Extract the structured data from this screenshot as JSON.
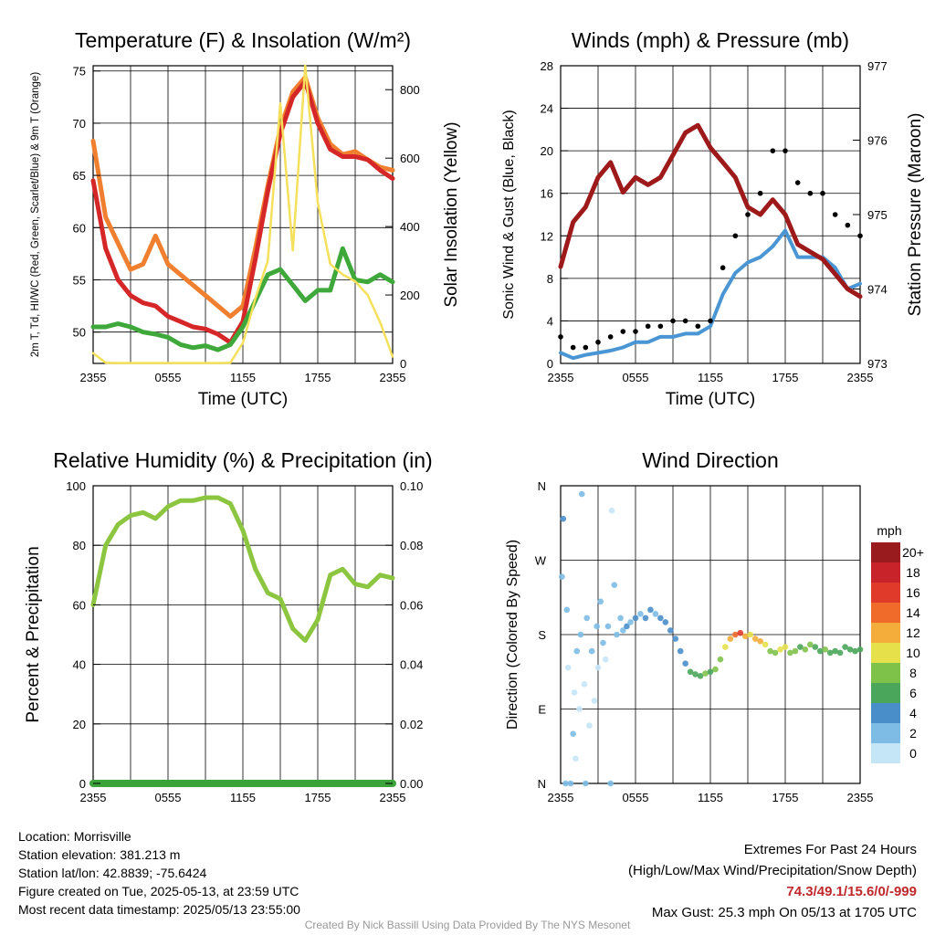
{
  "colors": {
    "red": "#d62728",
    "orange": "#f08030",
    "green": "#3ea83a",
    "yellow": "#f4e05a",
    "blue": "#4a96d4",
    "black": "#000000",
    "maroon": "#9e1a1a",
    "rh": "#8cc641",
    "precip": "#3aa33a"
  },
  "chart_data": [
    {
      "type": "line",
      "title": "Temperature (F) & Insolation (W/m²)",
      "xlabel": "Time (UTC)",
      "ylabel": "2m T, Td, HI/WC (Red, Green, Scarlet/Blue) & 9m T (Orange)",
      "y2label": "Solar Insolation (Yellow)",
      "xticks": [
        "2355",
        "0555",
        "1155",
        "1755",
        "2355"
      ],
      "ylim": [
        47,
        75.5
      ],
      "yticks": [
        "50",
        "55",
        "60",
        "65",
        "70",
        "75"
      ],
      "y2lim": [
        0,
        870
      ],
      "y2ticks": [
        "0",
        "200",
        "400",
        "600",
        "800"
      ],
      "x_hours": [
        0,
        1,
        2,
        3,
        4,
        5,
        6,
        7,
        8,
        9,
        10,
        11,
        12,
        13,
        14,
        15,
        16,
        17,
        18,
        19,
        20,
        21,
        22,
        23,
        24
      ],
      "series": [
        {
          "key": "t9m",
          "color": "orange",
          "axis": "left",
          "values": [
            68.3,
            61,
            58.5,
            56,
            56.5,
            59.2,
            56.5,
            55.5,
            54.5,
            53.5,
            52.5,
            51.5,
            52.5,
            58,
            64,
            69.5,
            73,
            74.4,
            70.5,
            68,
            67,
            67.3,
            66.5,
            65.8,
            65.5
          ]
        },
        {
          "key": "t2m",
          "color": "red",
          "axis": "left",
          "values": [
            64.5,
            58,
            55,
            53.5,
            52.8,
            52.5,
            51.5,
            51,
            50.5,
            50.3,
            49.8,
            49,
            51,
            57,
            63.5,
            69,
            72.5,
            74,
            70,
            67.5,
            66.8,
            66.8,
            66.5,
            65.5,
            64.7
          ]
        },
        {
          "key": "td",
          "color": "green",
          "axis": "left",
          "values": [
            50.5,
            50.5,
            50.8,
            50.5,
            50,
            49.8,
            49.5,
            48.8,
            48.5,
            48.7,
            48.3,
            48.8,
            50.5,
            53,
            55.5,
            56,
            54.5,
            53,
            54,
            54,
            58,
            55,
            54.8,
            55.5,
            54.8
          ]
        },
        {
          "key": "solar",
          "color": "yellow",
          "axis": "right",
          "values": [
            30,
            2,
            1,
            1,
            1,
            1,
            1,
            1,
            1,
            1,
            1,
            2,
            60,
            190,
            300,
            760,
            330,
            870,
            470,
            290,
            260,
            240,
            200,
            120,
            20
          ]
        }
      ]
    },
    {
      "type": "line",
      "title": "Winds (mph) & Pressure (mb)",
      "xlabel": "Time (UTC)",
      "ylabel": "Sonic Wind & Gust (Blue, Black)",
      "y2label": "Station Pressure (Maroon)",
      "xticks": [
        "2355",
        "0555",
        "1155",
        "1755",
        "2355"
      ],
      "ylim": [
        0,
        28
      ],
      "yticks": [
        "0",
        "4",
        "8",
        "12",
        "16",
        "20",
        "24",
        "28"
      ],
      "y2lim": [
        973,
        977
      ],
      "y2ticks": [
        "973",
        "974",
        "975",
        "976",
        "977"
      ],
      "x_hours": [
        0,
        1,
        2,
        3,
        4,
        5,
        6,
        7,
        8,
        9,
        10,
        11,
        12,
        13,
        14,
        15,
        16,
        17,
        18,
        19,
        20,
        21,
        22,
        23,
        24
      ],
      "series": [
        {
          "key": "wind",
          "color": "blue",
          "axis": "left",
          "values": [
            1,
            0.5,
            0.8,
            1,
            1.2,
            1.5,
            2,
            2,
            2.5,
            2.5,
            2.8,
            2.8,
            3.5,
            6.5,
            8.5,
            9.5,
            10,
            11,
            12.5,
            10,
            10,
            10,
            9,
            7,
            7.5
          ]
        },
        {
          "key": "gust",
          "color": "black",
          "axis": "left",
          "values": [
            2.5,
            1.5,
            1.5,
            2,
            2.5,
            3,
            3,
            3.5,
            3.5,
            4,
            4,
            3.5,
            4,
            9,
            12,
            14,
            16,
            20,
            20,
            17,
            16,
            16,
            14,
            13,
            12
          ]
        },
        {
          "key": "pressure",
          "color": "maroon",
          "axis": "right",
          "values": [
            974.3,
            974.9,
            975.1,
            975.5,
            975.7,
            975.3,
            975.5,
            975.4,
            975.5,
            975.8,
            976.1,
            976.2,
            975.9,
            975.7,
            975.5,
            975.1,
            975.0,
            975.2,
            975.0,
            974.6,
            974.5,
            974.4,
            974.2,
            974.0,
            973.9
          ]
        }
      ],
      "max_gust": {
        "value": 25.3,
        "label": "1705"
      }
    },
    {
      "type": "line",
      "title": "Relative Humidity (%) & Precipitation (in)",
      "xlabel": "",
      "ylabel": "Percent & Precipitation",
      "xticks": [
        "2355",
        "0555",
        "1155",
        "1755",
        "2355"
      ],
      "ylim": [
        0,
        100
      ],
      "yticks": [
        "0",
        "20",
        "40",
        "60",
        "80",
        "100"
      ],
      "y2lim": [
        0,
        0.1
      ],
      "y2ticks": [
        "0.00",
        "0.02",
        "0.04",
        "0.06",
        "0.08",
        "0.10"
      ],
      "x_hours": [
        0,
        1,
        2,
        3,
        4,
        5,
        6,
        7,
        8,
        9,
        10,
        11,
        12,
        13,
        14,
        15,
        16,
        17,
        18,
        19,
        20,
        21,
        22,
        23,
        24
      ],
      "series": [
        {
          "key": "rh",
          "color": "rh",
          "axis": "left",
          "values": [
            60,
            80,
            87,
            90,
            91,
            89,
            93,
            95,
            95,
            96,
            96,
            94,
            85,
            72,
            64,
            62,
            52,
            48,
            55,
            70,
            72,
            67,
            66,
            70,
            69
          ]
        },
        {
          "key": "precip",
          "color": "precip",
          "axis": "right",
          "values": [
            0,
            0,
            0,
            0,
            0,
            0,
            0,
            0,
            0,
            0,
            0,
            0,
            0,
            0,
            0,
            0,
            0,
            0,
            0,
            0,
            0,
            0,
            0,
            0,
            0
          ]
        }
      ]
    },
    {
      "type": "scatter",
      "title": "Wind Direction",
      "xlabel": "",
      "ylabel": "Direction (Colored By Speed)",
      "xticks": [
        "2355",
        "0555",
        "1155",
        "1755",
        "2355"
      ],
      "ylim": [
        0,
        360
      ],
      "yticks": [
        {
          "label": "N",
          "v": 0
        },
        {
          "label": "E",
          "v": 90
        },
        {
          "label": "S",
          "v": 180
        },
        {
          "label": "W",
          "v": 270
        },
        {
          "label": "N",
          "v": 360
        }
      ],
      "points": [
        {
          "x": 0.1,
          "y": 250,
          "s": 1
        },
        {
          "x": 0.2,
          "y": 320,
          "s": 3
        },
        {
          "x": 0.4,
          "y": 0,
          "s": 1
        },
        {
          "x": 0.5,
          "y": 210,
          "s": 1
        },
        {
          "x": 0.6,
          "y": 140,
          "s": 0
        },
        {
          "x": 0.8,
          "y": 0,
          "s": 1
        },
        {
          "x": 1.0,
          "y": 60,
          "s": 1
        },
        {
          "x": 1.1,
          "y": 110,
          "s": 0
        },
        {
          "x": 1.2,
          "y": 30,
          "s": 0
        },
        {
          "x": 1.3,
          "y": 160,
          "s": 1
        },
        {
          "x": 1.5,
          "y": 90,
          "s": 0
        },
        {
          "x": 1.6,
          "y": 180,
          "s": 1
        },
        {
          "x": 1.7,
          "y": 350,
          "s": 1
        },
        {
          "x": 1.9,
          "y": 120,
          "s": 0
        },
        {
          "x": 2.0,
          "y": 0,
          "s": 1
        },
        {
          "x": 2.1,
          "y": 200,
          "s": 2
        },
        {
          "x": 2.3,
          "y": 70,
          "s": 0
        },
        {
          "x": 2.5,
          "y": 160,
          "s": 1
        },
        {
          "x": 2.7,
          "y": 100,
          "s": 0
        },
        {
          "x": 2.9,
          "y": 190,
          "s": 1
        },
        {
          "x": 3.0,
          "y": 140,
          "s": 0
        },
        {
          "x": 3.2,
          "y": 220,
          "s": 1
        },
        {
          "x": 3.4,
          "y": 170,
          "s": 1
        },
        {
          "x": 3.6,
          "y": 150,
          "s": 0
        },
        {
          "x": 3.8,
          "y": 190,
          "s": 1
        },
        {
          "x": 4.0,
          "y": 0,
          "s": 1
        },
        {
          "x": 4.1,
          "y": 330,
          "s": 0
        },
        {
          "x": 4.3,
          "y": 240,
          "s": 1
        },
        {
          "x": 4.5,
          "y": 180,
          "s": 2
        },
        {
          "x": 4.8,
          "y": 200,
          "s": 1
        },
        {
          "x": 5.0,
          "y": 185,
          "s": 2
        },
        {
          "x": 5.3,
          "y": 190,
          "s": 3
        },
        {
          "x": 5.6,
          "y": 195,
          "s": 2
        },
        {
          "x": 6.0,
          "y": 200,
          "s": 3
        },
        {
          "x": 6.4,
          "y": 205,
          "s": 2
        },
        {
          "x": 6.8,
          "y": 200,
          "s": 3
        },
        {
          "x": 7.2,
          "y": 210,
          "s": 3
        },
        {
          "x": 7.6,
          "y": 205,
          "s": 2
        },
        {
          "x": 8.0,
          "y": 200,
          "s": 3
        },
        {
          "x": 8.4,
          "y": 195,
          "s": 3
        },
        {
          "x": 8.8,
          "y": 185,
          "s": 3
        },
        {
          "x": 9.2,
          "y": 175,
          "s": 3
        },
        {
          "x": 9.6,
          "y": 160,
          "s": 4
        },
        {
          "x": 10.0,
          "y": 145,
          "s": 4
        },
        {
          "x": 10.4,
          "y": 135,
          "s": 5
        },
        {
          "x": 10.8,
          "y": 132,
          "s": 6
        },
        {
          "x": 11.2,
          "y": 130,
          "s": 6
        },
        {
          "x": 11.6,
          "y": 133,
          "s": 7
        },
        {
          "x": 12.0,
          "y": 135,
          "s": 6
        },
        {
          "x": 12.4,
          "y": 138,
          "s": 7
        },
        {
          "x": 12.8,
          "y": 150,
          "s": 8
        },
        {
          "x": 13.2,
          "y": 165,
          "s": 10
        },
        {
          "x": 13.6,
          "y": 175,
          "s": 12
        },
        {
          "x": 14.0,
          "y": 180,
          "s": 14
        },
        {
          "x": 14.4,
          "y": 182,
          "s": 16
        },
        {
          "x": 14.8,
          "y": 178,
          "s": 12
        },
        {
          "x": 15.2,
          "y": 180,
          "s": 10
        },
        {
          "x": 15.6,
          "y": 175,
          "s": 12
        },
        {
          "x": 16.0,
          "y": 172,
          "s": 11
        },
        {
          "x": 16.4,
          "y": 168,
          "s": 9
        },
        {
          "x": 16.8,
          "y": 160,
          "s": 7
        },
        {
          "x": 17.2,
          "y": 158,
          "s": 8
        },
        {
          "x": 17.6,
          "y": 162,
          "s": 9
        },
        {
          "x": 18.0,
          "y": 165,
          "s": 10
        },
        {
          "x": 18.4,
          "y": 158,
          "s": 8
        },
        {
          "x": 18.8,
          "y": 160,
          "s": 7
        },
        {
          "x": 19.2,
          "y": 165,
          "s": 6
        },
        {
          "x": 19.6,
          "y": 162,
          "s": 7
        },
        {
          "x": 20.0,
          "y": 168,
          "s": 8
        },
        {
          "x": 20.4,
          "y": 165,
          "s": 6
        },
        {
          "x": 20.8,
          "y": 160,
          "s": 5
        },
        {
          "x": 21.2,
          "y": 162,
          "s": 7
        },
        {
          "x": 21.6,
          "y": 158,
          "s": 6
        },
        {
          "x": 22.0,
          "y": 160,
          "s": 5
        },
        {
          "x": 22.4,
          "y": 158,
          "s": 6
        },
        {
          "x": 22.8,
          "y": 165,
          "s": 5
        },
        {
          "x": 23.2,
          "y": 162,
          "s": 6
        },
        {
          "x": 23.6,
          "y": 160,
          "s": 6
        },
        {
          "x": 24.0,
          "y": 162,
          "s": 5
        }
      ],
      "colorbar": {
        "unit": "mph",
        "levels": [
          {
            "label": "0",
            "color": "#c5e6f7"
          },
          {
            "label": "2",
            "color": "#7ebce6"
          },
          {
            "label": "4",
            "color": "#4a8ec9"
          },
          {
            "label": "6",
            "color": "#4aa65a"
          },
          {
            "label": "8",
            "color": "#7fc24a"
          },
          {
            "label": "10",
            "color": "#e6e04a"
          },
          {
            "label": "12",
            "color": "#f4ac3a"
          },
          {
            "label": "14",
            "color": "#f06a2a"
          },
          {
            "label": "16",
            "color": "#e03a2a"
          },
          {
            "label": "18",
            "color": "#c8232b"
          },
          {
            "label": "20+",
            "color": "#991b1e"
          }
        ]
      }
    }
  ],
  "info": {
    "location": "Location: Morrisville",
    "elevation": "Station elevation: 381.213 m",
    "latlon": "Station lat/lon: 42.8839; -75.6424",
    "created": "Figure created on Tue, 2025-05-13, at 23:59 UTC",
    "recent": "Most recent data timestamp: 2025/05/13 23:55:00"
  },
  "extremes": {
    "title": "Extremes For Past 24 Hours",
    "subtitle": "(High/Low/Max Wind/Precipitation/Snow Depth)",
    "values": "74.3/49.1/15.6/0/-999",
    "max_gust": "Max Gust: 25.3 mph On 05/13 at 1705 UTC"
  },
  "credit": "Created By Nick Bassill Using Data Provided By The NYS Mesonet"
}
